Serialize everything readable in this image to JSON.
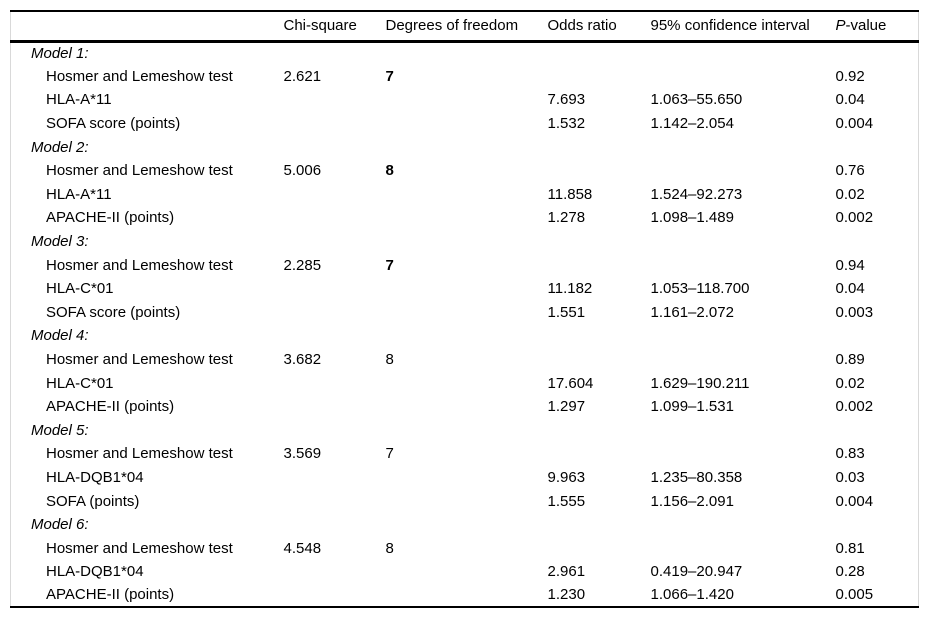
{
  "table": {
    "headers": {
      "label": "",
      "chi_square": "Chi-square",
      "df": "Degrees of freedom",
      "odds_ratio": "Odds ratio",
      "ci": "95% confidence interval",
      "p_italic": "P",
      "p_rest": "-value"
    },
    "models": [
      {
        "label": "Model 1:",
        "rows": [
          {
            "label": "Hosmer and Lemeshow test",
            "chi_square": "2.621",
            "df": "7",
            "df_bold": true,
            "odds_ratio": "",
            "ci": "",
            "p": "0.92"
          },
          {
            "label": "HLA-A*11",
            "chi_square": "",
            "df": "",
            "df_bold": false,
            "odds_ratio": "7.693",
            "ci": "1.063–55.650",
            "p": "0.04"
          },
          {
            "label": "SOFA score (points)",
            "chi_square": "",
            "df": "",
            "df_bold": false,
            "odds_ratio": "1.532",
            "ci": "1.142–2.054",
            "p": "0.004"
          }
        ]
      },
      {
        "label": "Model 2:",
        "rows": [
          {
            "label": "Hosmer and Lemeshow test",
            "chi_square": "5.006",
            "df": "8",
            "df_bold": true,
            "odds_ratio": "",
            "ci": "",
            "p": "0.76"
          },
          {
            "label": "HLA-A*11",
            "chi_square": "",
            "df": "",
            "df_bold": false,
            "odds_ratio": "11.858",
            "ci": "1.524–92.273",
            "p": "0.02"
          },
          {
            "label": "APACHE-II (points)",
            "chi_square": "",
            "df": "",
            "df_bold": false,
            "odds_ratio": "1.278",
            "ci": "1.098–1.489",
            "p": "0.002"
          }
        ]
      },
      {
        "label": "Model 3:",
        "rows": [
          {
            "label": "Hosmer and Lemeshow test",
            "chi_square": "2.285",
            "df": "7",
            "df_bold": true,
            "odds_ratio": "",
            "ci": "",
            "p": "0.94"
          },
          {
            "label": "HLA-C*01",
            "chi_square": "",
            "df": "",
            "df_bold": false,
            "odds_ratio": "11.182",
            "ci": "1.053–118.700",
            "p": "0.04"
          },
          {
            "label": "SOFA score (points)",
            "chi_square": "",
            "df": "",
            "df_bold": false,
            "odds_ratio": "1.551",
            "ci": "1.161–2.072",
            "p": "0.003"
          }
        ]
      },
      {
        "label": "Model 4:",
        "rows": [
          {
            "label": "Hosmer and Lemeshow test",
            "chi_square": "3.682",
            "df": "8",
            "df_bold": false,
            "odds_ratio": "",
            "ci": "",
            "p": "0.89"
          },
          {
            "label": "HLA-C*01",
            "chi_square": "",
            "df": "",
            "df_bold": false,
            "odds_ratio": "17.604",
            "ci": "1.629–190.211",
            "p": "0.02"
          },
          {
            "label": "APACHE-II (points)",
            "chi_square": "",
            "df": "",
            "df_bold": false,
            "odds_ratio": "1.297",
            "ci": "1.099–1.531",
            "p": "0.002"
          }
        ]
      },
      {
        "label": "Model 5:",
        "rows": [
          {
            "label": "Hosmer and Lemeshow test",
            "chi_square": "3.569",
            "df": "7",
            "df_bold": false,
            "odds_ratio": "",
            "ci": "",
            "p": "0.83"
          },
          {
            "label": "HLA-DQB1*04",
            "chi_square": "",
            "df": "",
            "df_bold": false,
            "odds_ratio": "9.963",
            "ci": "1.235–80.358",
            "p": "0.03"
          },
          {
            "label": "SOFA (points)",
            "chi_square": "",
            "df": "",
            "df_bold": false,
            "odds_ratio": "1.555",
            "ci": "1.156–2.091",
            "p": "0.004"
          }
        ]
      },
      {
        "label": "Model 6:",
        "rows": [
          {
            "label": "Hosmer and Lemeshow test",
            "chi_square": "4.548",
            "df": "8",
            "df_bold": false,
            "odds_ratio": "",
            "ci": "",
            "p": "0.81"
          },
          {
            "label": "HLA-DQB1*04",
            "chi_square": "",
            "df": "",
            "df_bold": false,
            "odds_ratio": "2.961",
            "ci": "0.419–20.947",
            "p": "0.28"
          },
          {
            "label": "APACHE-II (points)",
            "chi_square": "",
            "df": "",
            "df_bold": false,
            "odds_ratio": "1.230",
            "ci": "1.066–1.420",
            "p": "0.005"
          }
        ]
      }
    ]
  }
}
